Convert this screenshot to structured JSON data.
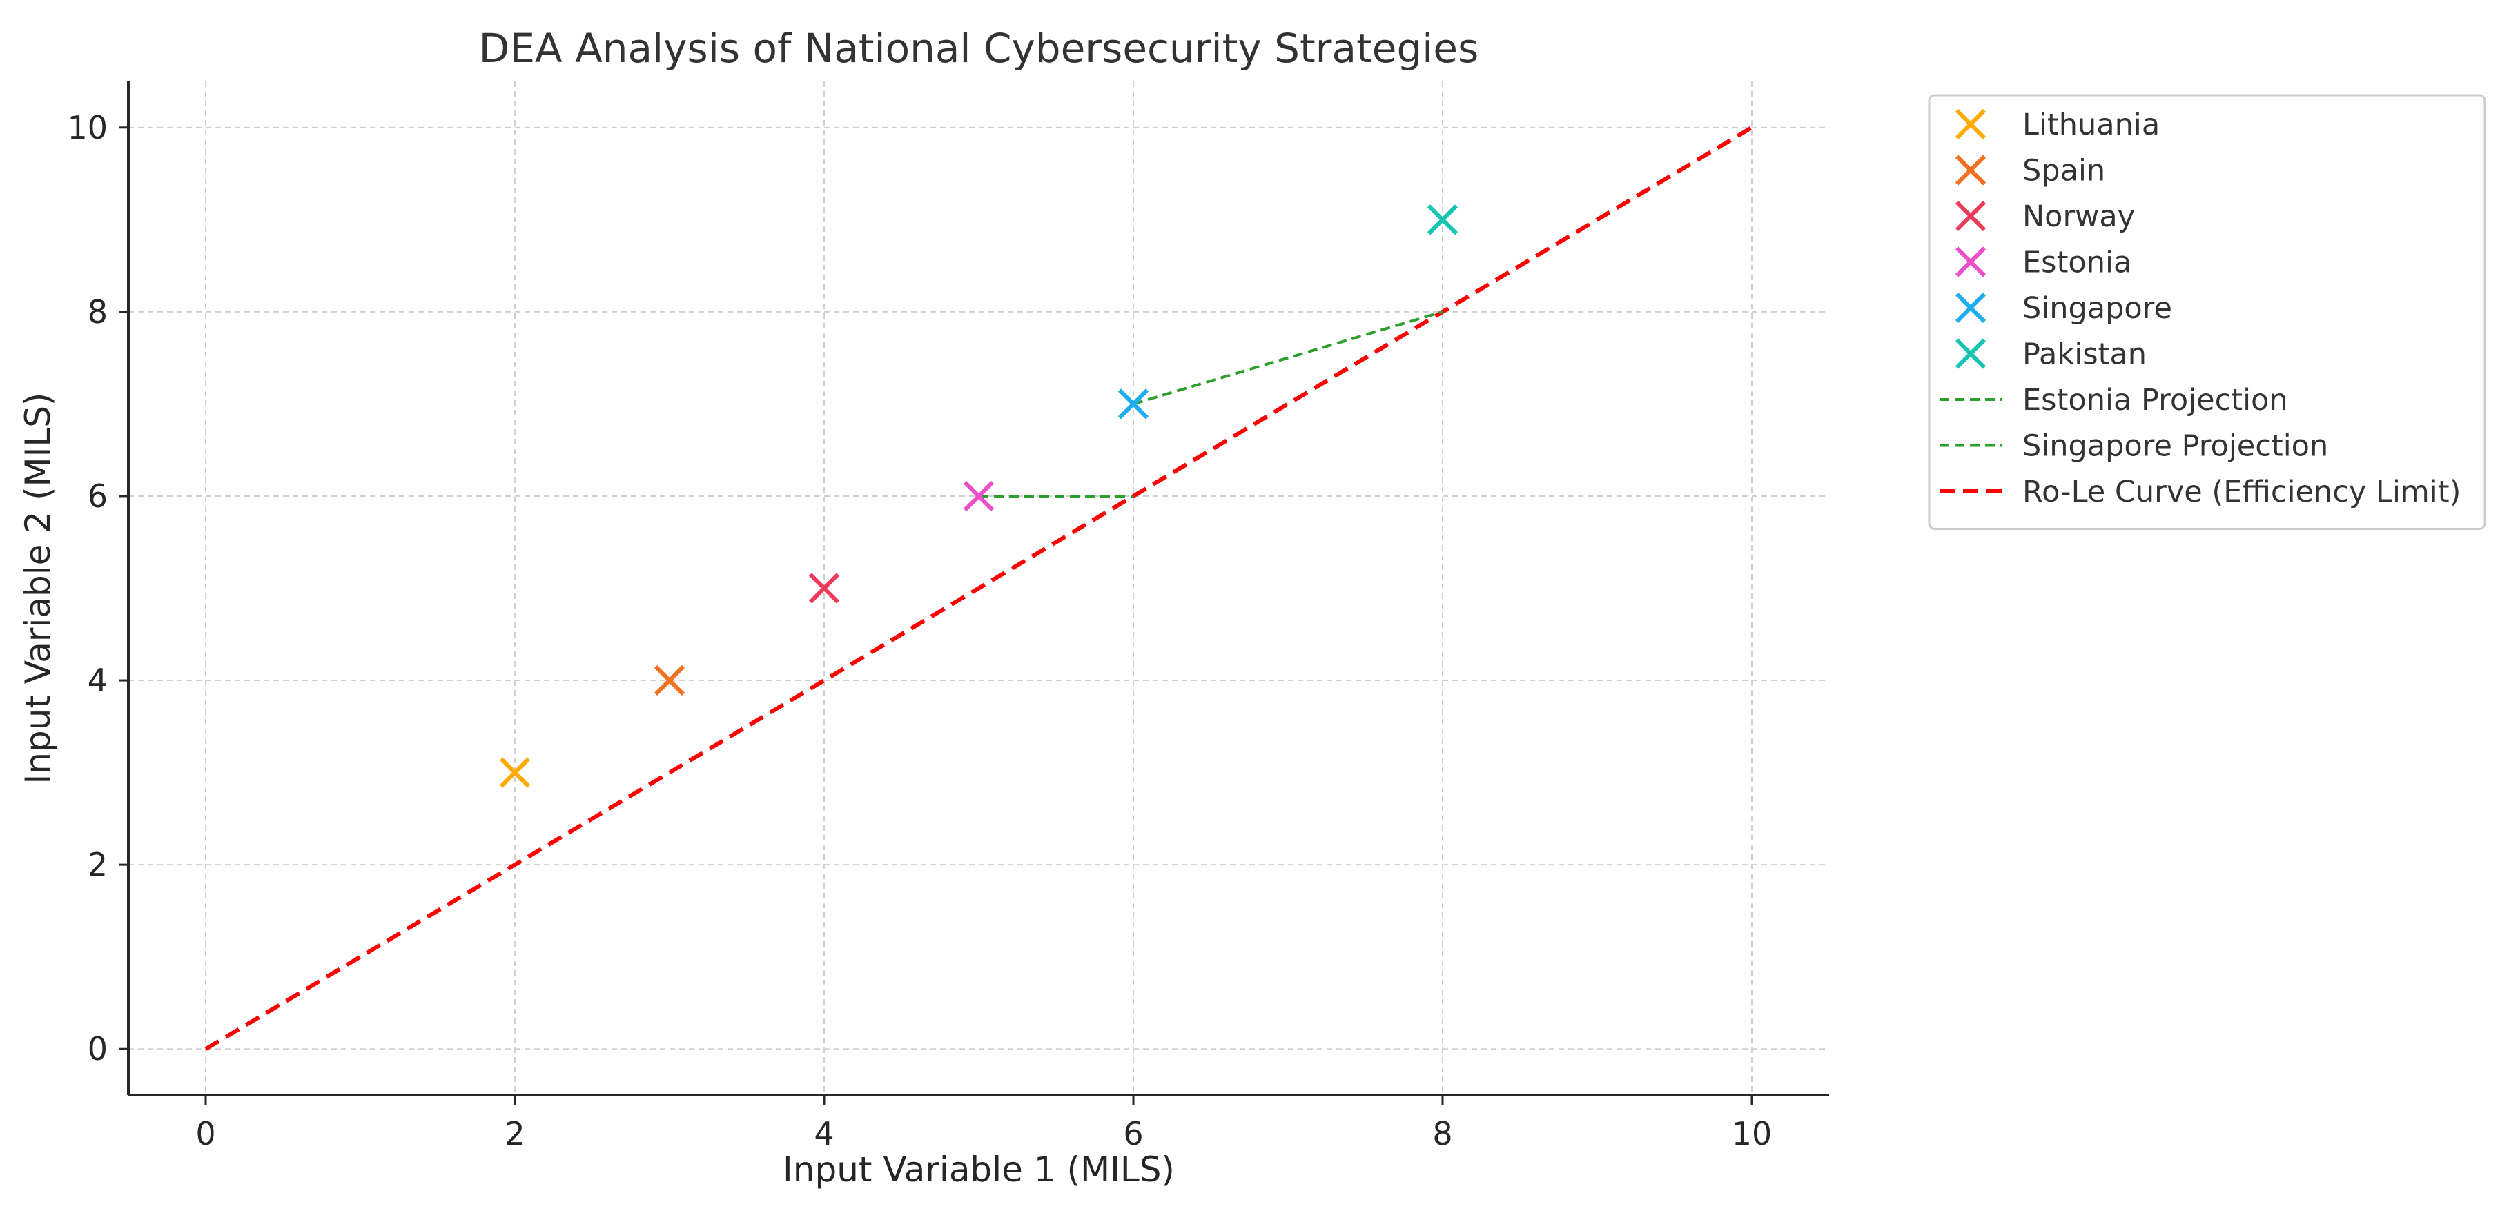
{
  "chart_data": {
    "type": "scatter",
    "title": "DEA Analysis of National Cybersecurity Strategies",
    "xlabel": "Input Variable 1 (MILS)",
    "ylabel": "Input Variable 2 (MILS)",
    "xlim": [
      -0.5,
      10.5
    ],
    "ylim": [
      -0.5,
      10.5
    ],
    "xticks": [
      "0",
      "2",
      "4",
      "6",
      "8",
      "10"
    ],
    "yticks": [
      "0",
      "2",
      "4",
      "6",
      "8",
      "10"
    ],
    "grid": true,
    "legend_position": "outside-top-right",
    "points": [
      {
        "name": "Lithuania",
        "x": 2,
        "y": 3,
        "color": "#FFAA00"
      },
      {
        "name": "Spain",
        "x": 3,
        "y": 4,
        "color": "#F37021"
      },
      {
        "name": "Norway",
        "x": 4,
        "y": 5,
        "color": "#EE3B5A"
      },
      {
        "name": "Estonia",
        "x": 5,
        "y": 6,
        "color": "#EC4FC8"
      },
      {
        "name": "Singapore",
        "x": 6,
        "y": 7,
        "color": "#20ADEF"
      },
      {
        "name": "Pakistan",
        "x": 8,
        "y": 9,
        "color": "#17C3B2"
      }
    ],
    "projections": [
      {
        "name": "Estonia Projection",
        "from": [
          5,
          6
        ],
        "to": [
          6,
          6
        ],
        "color": "#2CA02C"
      },
      {
        "name": "Singapore Projection",
        "from": [
          6,
          7
        ],
        "to": [
          8,
          8
        ],
        "color": "#2CA02C"
      }
    ],
    "curve": {
      "name": "Ro-Le Curve (Efficiency Limit)",
      "x": [
        0,
        10
      ],
      "y": [
        0,
        10
      ],
      "color": "#FF0000"
    }
  }
}
